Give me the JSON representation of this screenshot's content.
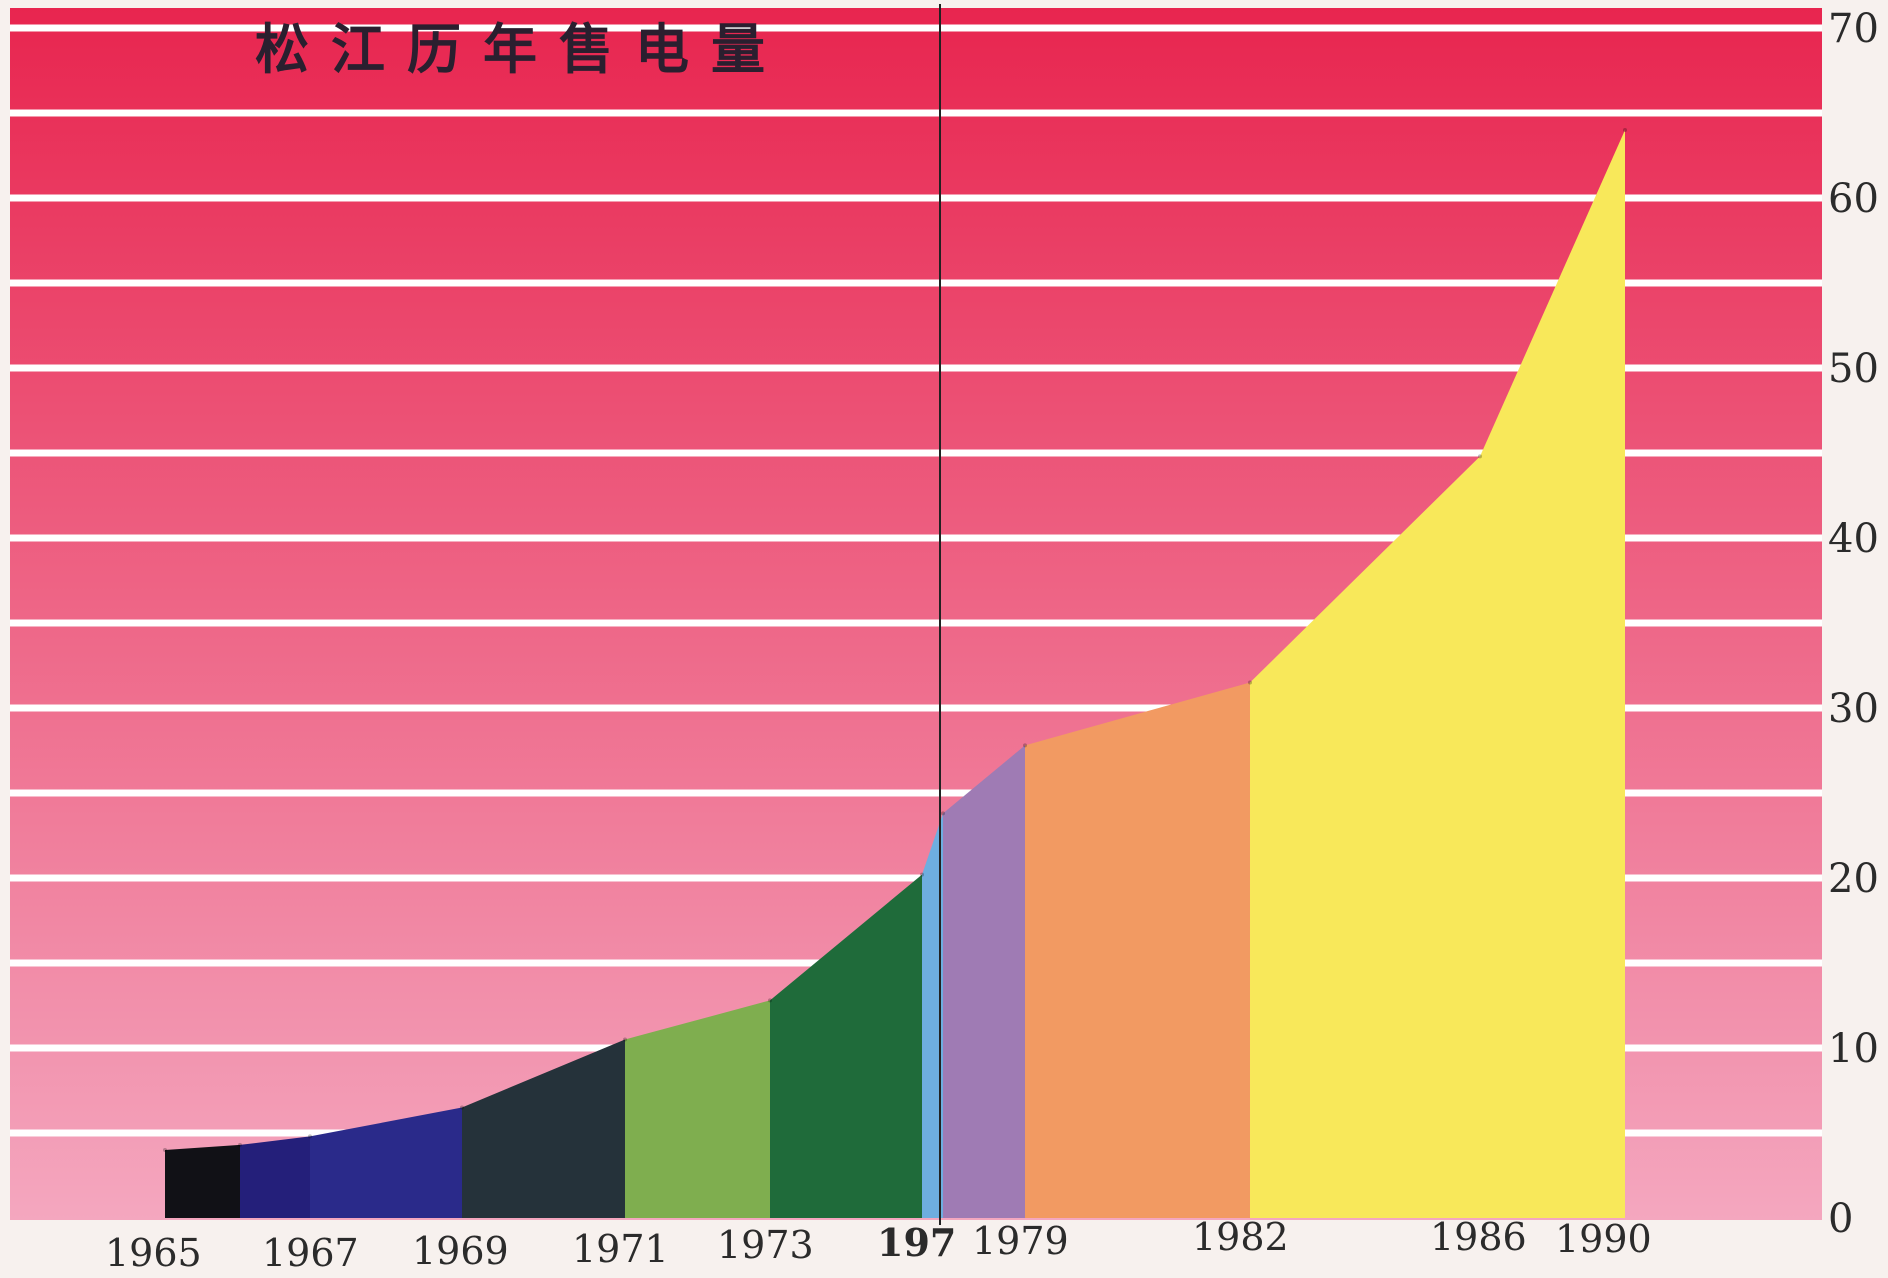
{
  "chart_data": {
    "type": "area",
    "title": "松江历年售电量",
    "xlabel": "",
    "ylabel": "",
    "ylim": [
      0,
      70
    ],
    "y_ticks": [
      "0",
      "10",
      "20",
      "30",
      "40",
      "50",
      "60",
      "70"
    ],
    "y_axis_side": "right",
    "x_tick_labels": [
      "1965",
      "1967",
      "1969",
      "1971",
      "1973",
      "197",
      "1979",
      "1982",
      "1986",
      "1990"
    ],
    "grid": true,
    "x": [
      1965,
      1966,
      1967,
      1969,
      1971,
      1973,
      1975,
      1977,
      1979,
      1982,
      1986,
      1990
    ],
    "values": [
      4.0,
      4.3,
      4.8,
      6.5,
      10.5,
      12.8,
      20.2,
      23.8,
      27.8,
      31.5,
      44.8,
      64.0
    ],
    "period_colors": [
      "#111116",
      "#241f7a",
      "#2a2a8a",
      "#25323a",
      "#7fae4f",
      "#1f6b3a",
      "#6eaee0",
      "#9f7bb4",
      "#f29a62",
      "#f8e85a"
    ],
    "background_colors": {
      "top": "#e8254f",
      "bottom": "#f4a7bf",
      "gridline": "#ffffff"
    }
  }
}
